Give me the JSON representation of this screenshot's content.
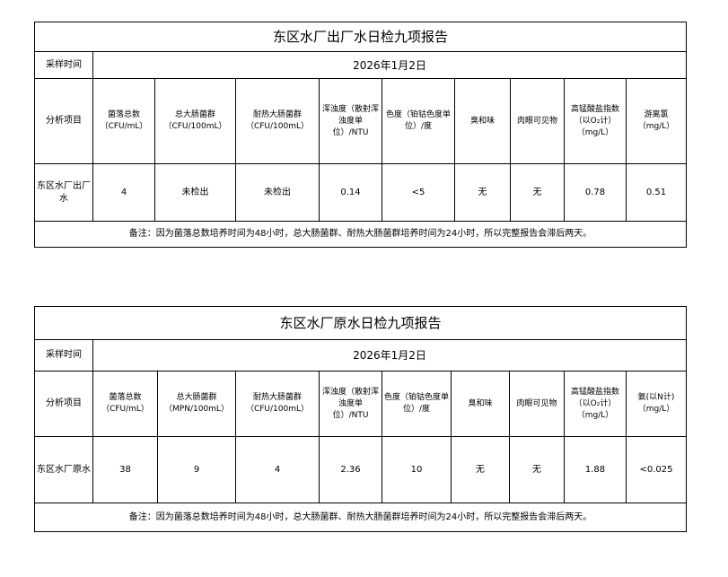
{
  "tables": [
    {
      "title": "东区水厂出厂水日检九项报告",
      "sample_time_label": "采样时间",
      "date": "2026年1月2日",
      "analysis_label": "分析项目",
      "headers": [
        "菌落总数（CFU/mL）",
        "总大肠菌群（CFU/100mL）",
        "耐热大肠菌群（CFU/100mL）",
        "浑浊度（散射浑浊度单位）/NTU",
        "色度（铂钴色度单位）/度",
        "臭和味",
        "肉眼可见物",
        "高锰酸盐指数（以O₂计）（mg/L）",
        "游离氯（mg/L）"
      ],
      "row_label": "东区水厂出厂水",
      "values": [
        "4",
        "未检出",
        "未检出",
        "0.14",
        "<5",
        "无",
        "无",
        "0.78",
        "0.51"
      ],
      "note": "备注：因为菌落总数培养时间为48小时，总大肠菌群、耐热大肠菌群培养时间为24小时，所以完整报告会滞后两天。"
    },
    {
      "title": "东区水厂原水日检九项报告",
      "sample_time_label": "采样时间",
      "date": "2026年1月2日",
      "analysis_label": "分析项目",
      "headers": [
        "菌落总数（CFU/mL）",
        "总大肠菌群（MPN/100mL）",
        "耐热大肠菌群（CFU/100mL）",
        "浑浊度（散射浑浊度单位）/NTU",
        "色度（铂钴色度单位）/度",
        "臭和味",
        "肉眼可见物",
        "高锰酸盐指数（以O₂计）（mg/L）",
        "氨(以N计)（mg/L）"
      ],
      "row_label": "东区水厂原水",
      "values": [
        "38",
        "9",
        "4",
        "2.36",
        "10",
        "无",
        "无",
        "1.88",
        "<0.025"
      ],
      "note": "备注：因为菌落总数培养时间为48小时，总大肠菌群、耐热大肠菌群培养时间为24小时，所以完整报告会滞后两天。"
    }
  ]
}
